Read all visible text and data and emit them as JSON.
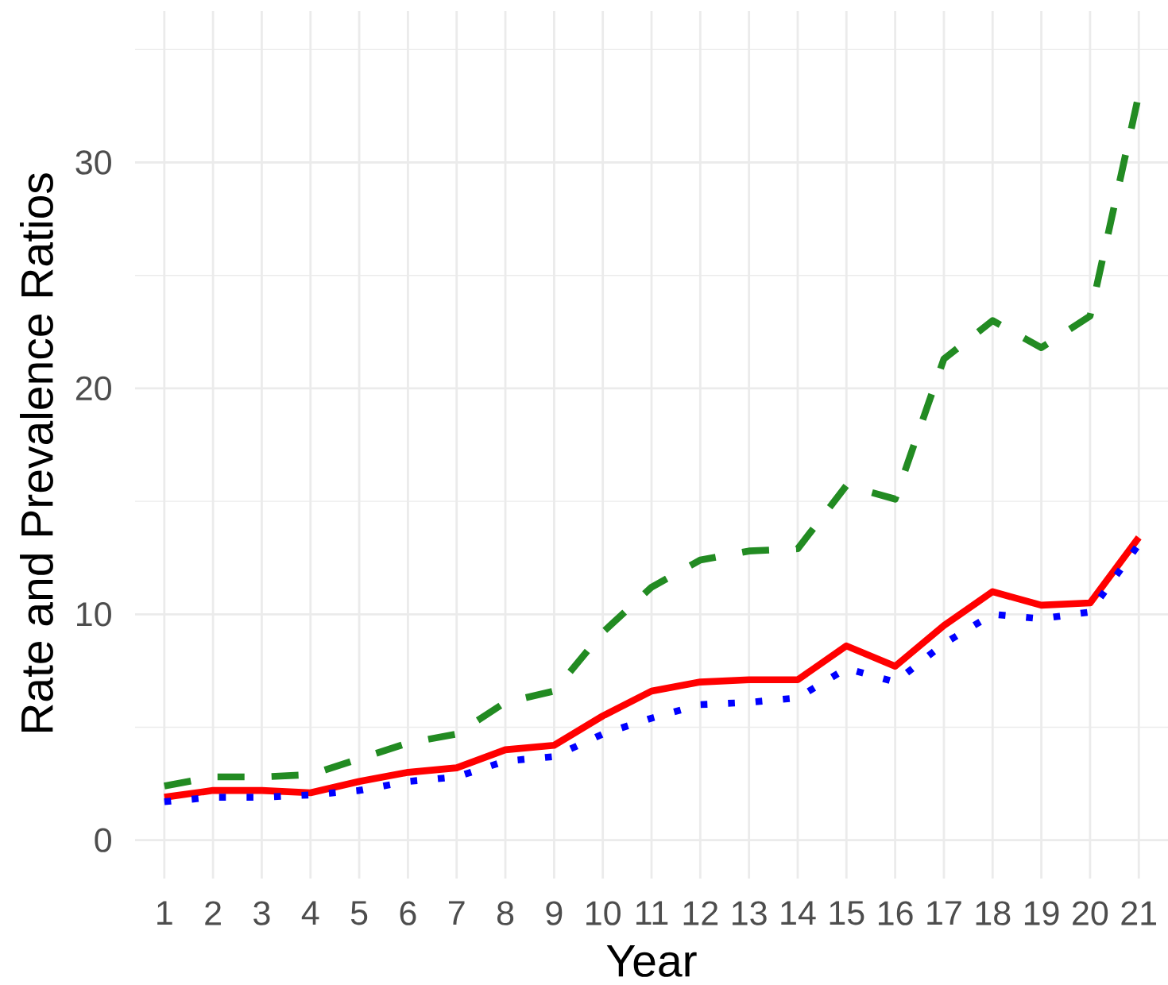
{
  "chart_data": {
    "type": "line",
    "xlabel": "Year",
    "ylabel": "Rate and Prevalence Ratios",
    "categories": [
      "1",
      "2",
      "3",
      "4",
      "5",
      "6",
      "7",
      "8",
      "9",
      "10",
      "11",
      "12",
      "13",
      "14",
      "15",
      "16",
      "17",
      "18",
      "19",
      "20",
      "21"
    ],
    "series": [
      {
        "color": "#228b22",
        "line_style": "dashed",
        "values": [
          2.4,
          2.8,
          2.8,
          2.9,
          3.6,
          4.3,
          4.7,
          6.1,
          6.6,
          9.2,
          11.2,
          12.4,
          12.8,
          12.9,
          15.7,
          15.1,
          21.3,
          23.0,
          21.8,
          23.2,
          33.0
        ]
      },
      {
        "color": "#ff0000",
        "line_style": "solid",
        "values": [
          1.9,
          2.2,
          2.2,
          2.1,
          2.6,
          3.0,
          3.2,
          4.0,
          4.2,
          5.5,
          6.6,
          7.0,
          7.1,
          7.1,
          8.6,
          7.7,
          9.5,
          11.0,
          10.4,
          10.5,
          13.4
        ]
      },
      {
        "color": "#0000ff",
        "line_style": "dotted",
        "values": [
          1.7,
          1.9,
          1.9,
          2.0,
          2.2,
          2.6,
          2.8,
          3.5,
          3.7,
          4.7,
          5.4,
          6.0,
          6.1,
          6.3,
          7.6,
          7.0,
          8.7,
          10.0,
          9.8,
          10.1,
          13.1
        ]
      }
    ],
    "ylim": [
      -1.7,
      36.7
    ],
    "yticks": [
      0,
      {
        "value": 5,
        "label": null
      },
      10,
      {
        "value": 15,
        "label": null
      },
      20,
      {
        "value": 25,
        "label": null
      },
      30,
      {
        "value": 35,
        "label": null
      }
    ],
    "grid": true
  }
}
